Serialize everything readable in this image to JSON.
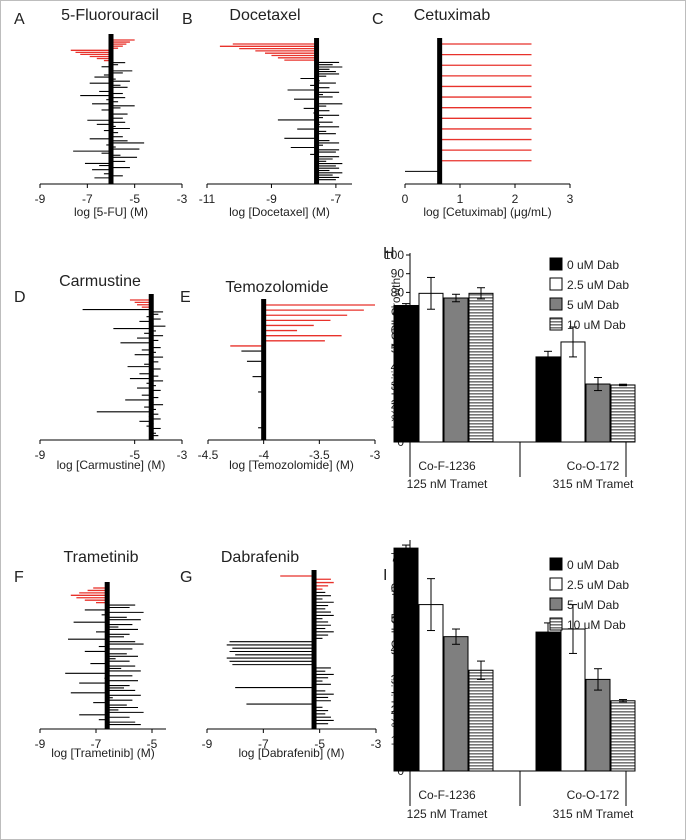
{
  "colors": {
    "highlight": "#e8322b",
    "bar_line": "#000000",
    "bar_0": "#000000",
    "bar_2_5": "#ffffff",
    "bar_5": "#7f7f7f",
    "bar_10": "hatch"
  },
  "chart_data": [
    {
      "panel": "A",
      "type": "bar",
      "orientation": "horizontal",
      "title": "5-Fluorouracil",
      "xlabel": "log [5-FU] (M)",
      "xlim": [
        -9,
        -3
      ],
      "xticks": [
        "-9",
        "-7",
        "-5",
        "-3"
      ],
      "mean": -6.0,
      "red_values": [
        -5.0,
        -5.2,
        -5.35,
        -5.5,
        -5.7,
        -7.7,
        -7.5,
        -7.3,
        -6.9,
        -6.6,
        -6.3
      ],
      "values": [
        -5.4,
        -5.7,
        -6.4,
        -5.9,
        -5.1,
        -5.5,
        -6.3,
        -6.7,
        -5.8,
        -5.2,
        -6.9,
        -5.6,
        -5.3,
        -6.1,
        -6.5,
        -5.5,
        -7.3,
        -5.4,
        -6.2,
        -5.7,
        -6.8,
        -5.0,
        -5.6,
        -6.4,
        -5.9,
        -5.3,
        -6.1,
        -5.5,
        -7.0,
        -5.4,
        -6.6,
        -5.8,
        -5.2,
        -6.3,
        -5.7,
        -6.0,
        -5.5,
        -6.9,
        -5.3,
        -4.6,
        -6.2,
        -5.8,
        -4.8,
        -7.6,
        -6.4,
        -5.6,
        -4.9,
        -6.1,
        -5.4,
        -7.1,
        -6.5,
        -5.2,
        -6.8,
        -5.9,
        -6.3,
        -5.5,
        -6.7,
        -6.0
      ]
    },
    {
      "panel": "B",
      "type": "bar",
      "orientation": "horizontal",
      "title": "Docetaxel",
      "xlabel": "log [Docetaxel] (M)",
      "xlim": [
        -11,
        -6.5
      ],
      "xticks": [
        "-11",
        "-9",
        "-7"
      ],
      "mean": -7.6,
      "red_values": [
        -10.2,
        -10.6,
        -10.0,
        -9.5,
        -9.2,
        -9.0,
        -8.8,
        -8.6
      ],
      "values": [
        -6.9,
        -7.1,
        -6.8,
        -7.2,
        -7.0,
        -6.9,
        -7.3,
        -8.1,
        -7.5,
        -7.0,
        -7.8,
        -7.2,
        -8.5,
        -6.9,
        -7.4,
        -7.1,
        -8.3,
        -7.6,
        -6.8,
        -7.3,
        -8.0,
        -7.2,
        -7.7,
        -6.9,
        -7.4,
        -8.8,
        -7.1,
        -7.5,
        -6.9,
        -8.2,
        -7.3,
        -7.0,
        -7.6,
        -8.6,
        -7.2,
        -6.9,
        -7.4,
        -8.4,
        -6.9,
        -7.0,
        -7.8,
        -6.9,
        -7.1,
        -7.3,
        -6.8,
        -7.0,
        -6.9,
        -7.2,
        -6.8,
        -7.1,
        -6.9,
        -7.0
      ]
    },
    {
      "panel": "C",
      "type": "bar",
      "orientation": "horizontal",
      "title": "Cetuximab",
      "xlabel": "log [Cetuximab] (μg/mL)",
      "xlim": [
        0,
        3
      ],
      "xticks": [
        "0",
        "1",
        "2",
        "3"
      ],
      "mean": 0.63,
      "red_values": [
        2.3,
        2.3,
        2.3,
        2.3,
        2.3,
        2.3,
        2.3,
        2.3,
        2.3,
        2.3,
        2.3,
        2.3
      ],
      "values": [
        0.0
      ]
    },
    {
      "panel": "D",
      "type": "bar",
      "orientation": "horizontal",
      "title": "Carmustine",
      "xlabel": "log [Carmustine] (M)",
      "xlim": [
        -9,
        -3
      ],
      "xticks": [
        "-9",
        "-5",
        "-3"
      ],
      "mean": -4.3,
      "red_values": [
        -5.2,
        -5.0,
        -4.9,
        -4.7
      ],
      "values": [
        -7.2,
        -3.8,
        -4.0,
        -4.5,
        -3.9,
        -4.8,
        -4.2,
        -3.7,
        -5.9,
        -4.1,
        -4.6,
        -3.8,
        -4.9,
        -4.0,
        -5.6,
        -4.3,
        -3.9,
        -4.7,
        -4.1,
        -5.0,
        -3.8,
        -4.4,
        -4.0,
        -4.6,
        -5.3,
        -3.9,
        -4.2,
        -4.8,
        -4.0,
        -5.2,
        -3.8,
        -4.5,
        -4.1,
        -4.9,
        -3.9,
        -4.3,
        -4.7,
        -4.0,
        -5.4,
        -4.2,
        -3.8,
        -4.6,
        -4.1,
        -6.6,
        -4.0,
        -4.4,
        -3.9,
        -4.8,
        -4.2,
        -4.5,
        -3.9,
        -4.3,
        -4.1,
        -4.0
      ]
    },
    {
      "panel": "E",
      "type": "bar",
      "orientation": "horizontal",
      "title": "Temozolomide",
      "xlabel": "log [Temozolomide] (M)",
      "xlim": [
        -4.5,
        -3
      ],
      "xticks": [
        "-4.5",
        "-4",
        "-3.5",
        "-3"
      ],
      "mean": -4.0,
      "red_values": [
        -3.0,
        -3.1,
        -3.25,
        -3.4,
        -3.55,
        -3.7,
        -3.3,
        -3.45,
        -4.3
      ],
      "values": [
        -4.2,
        -4.0,
        -4.15,
        -4.0,
        -4.0,
        -4.1,
        -4.0,
        -4.0,
        -4.05,
        -4.0,
        -4.0,
        -4.0,
        -4.0,
        -4.0,
        -4.0,
        -4.05,
        -4.0
      ]
    },
    {
      "panel": "F",
      "type": "bar",
      "orientation": "horizontal",
      "title": "Trametinib",
      "xlabel": "log [Trametinib] (M)",
      "xlim": [
        -9,
        -4.5
      ],
      "xticks": [
        "-9",
        "-7",
        "-5"
      ],
      "mean": -6.6,
      "red_values": [
        -7.1,
        -7.3,
        -7.6,
        -7.9,
        -7.7,
        -7.4,
        -7.0
      ],
      "values": [
        -5.6,
        -5.8,
        -7.4,
        -5.3,
        -6.8,
        -5.9,
        -5.4,
        -7.8,
        -5.7,
        -6.2,
        -5.5,
        -7.0,
        -5.8,
        -6.0,
        -8.0,
        -5.6,
        -5.3,
        -6.9,
        -5.7,
        -7.4,
        -5.9,
        -5.5,
        -6.3,
        -5.8,
        -7.2,
        -5.6,
        -6.1,
        -5.4,
        -8.1,
        -5.7,
        -6.7,
        -5.5,
        -7.6,
        -5.8,
        -6.0,
        -5.6,
        -7.9,
        -5.4,
        -6.4,
        -5.7,
        -7.1,
        -5.9,
        -5.5,
        -6.2,
        -5.3,
        -7.6,
        -5.8,
        -6.9,
        -5.6,
        -5.4
      ]
    },
    {
      "panel": "G",
      "type": "bar",
      "orientation": "horizontal",
      "title": "Dabrafenib",
      "xlabel": "log [Dabrafenib] (M)",
      "xlim": [
        -9,
        -3
      ],
      "xticks": [
        "-9",
        "-7",
        "-5",
        "-3"
      ],
      "mean": -5.2,
      "red_values": [
        -6.4,
        -4.6,
        -4.5,
        -4.7,
        -4.9
      ],
      "values": [
        -4.8,
        -4.6,
        -4.9,
        -4.5,
        -4.7,
        -4.8,
        -4.6,
        -4.5,
        -4.9,
        -4.7,
        -4.6,
        -4.8,
        -4.5,
        -4.7,
        -4.9,
        -8.2,
        -8.3,
        -8.1,
        -8.2,
        -8.0,
        -8.3,
        -8.2,
        -8.1,
        -4.6,
        -4.8,
        -4.5,
        -4.7,
        -4.9,
        -4.6,
        -8.0,
        -4.8,
        -4.5,
        -4.7,
        -4.6,
        -7.6,
        -4.9,
        -4.7,
        -4.8,
        -4.6,
        -4.5,
        -4.7
      ]
    },
    {
      "panel": "H",
      "type": "bar",
      "ylabel": "% Inhibition of Cell Growth",
      "ylim": [
        0,
        100
      ],
      "yticks": [
        "0",
        "10",
        "20",
        "30",
        "40",
        "50",
        "60",
        "70",
        "80",
        "90",
        "100"
      ],
      "categories": [
        "Co-F-1236",
        "Co-O-172"
      ],
      "category_sublabels": [
        "125 nM Tramet",
        "315 nM Tramet"
      ],
      "series": [
        {
          "name": "0 uM Dab",
          "values": [
            73,
            45.5
          ],
          "errors": [
            1,
            3
          ]
        },
        {
          "name": "2.5 uM Dab",
          "values": [
            79.5,
            53.5
          ],
          "errors": [
            8.5,
            8
          ]
        },
        {
          "name": "5 uM Dab",
          "values": [
            77,
            31
          ],
          "errors": [
            2,
            3.5
          ]
        },
        {
          "name": "10 uM Dab",
          "values": [
            79.5,
            30.5
          ],
          "errors": [
            3,
            0.4
          ]
        }
      ]
    },
    {
      "panel": "I",
      "type": "bar",
      "ylabel": "% Inhibition of Cell Growth",
      "ylim": [
        0,
        75
      ],
      "yticks": [
        "0",
        "10",
        "20",
        "30",
        "40",
        "50",
        "60",
        "70"
      ],
      "categories": [
        "Co-F-1236",
        "Co-O-172"
      ],
      "category_sublabels": [
        "125 nM Tramet",
        "315 nM Tramet"
      ],
      "series": [
        {
          "name": "0 uM Dab",
          "values": [
            73,
            45.5
          ],
          "errors": [
            1,
            3
          ]
        },
        {
          "name": "2.5 uM Dab",
          "values": [
            54.5,
            46.5
          ],
          "errors": [
            8.5,
            8
          ]
        },
        {
          "name": "5 uM Dab",
          "values": [
            44,
            30
          ],
          "errors": [
            2.5,
            3.5
          ]
        },
        {
          "name": "10 uM Dab",
          "values": [
            33,
            23
          ],
          "errors": [
            3,
            0.4
          ]
        }
      ]
    }
  ]
}
